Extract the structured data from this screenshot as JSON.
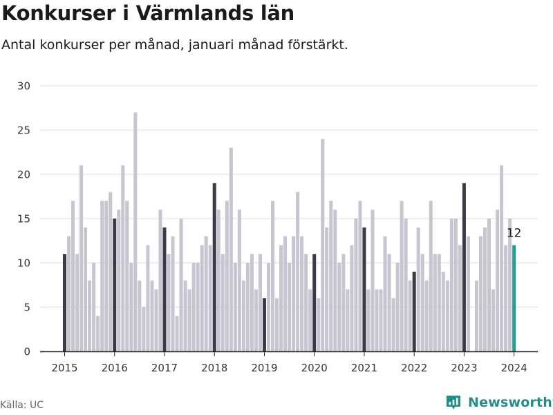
{
  "title": "Konkurser i Värmlands län",
  "subtitle": "Antal konkurser per månad, januari månad förstärkt.",
  "source": "Källa: UC",
  "brand": {
    "name": "Newsworthy",
    "logo_icon": "newsworthy-logo-icon"
  },
  "colors": {
    "regular": "#c6c5d0",
    "january": "#3b3a48",
    "latest": "#16a39a",
    "grid": "#dddddd",
    "brand": "#1f8f8a"
  },
  "chart_data": {
    "type": "bar",
    "title": "Konkurser i Värmlands län",
    "subtitle": "Antal konkurser per månad, januari månad förstärkt.",
    "ylim": [
      0,
      30
    ],
    "yticks": [
      0,
      5,
      10,
      15,
      20,
      25,
      30
    ],
    "xticks": [
      "2015",
      "2016",
      "2017",
      "2018",
      "2019",
      "2020",
      "2021",
      "2022",
      "2023",
      "2024"
    ],
    "grid": true,
    "series": [
      {
        "year": "2015",
        "values": [
          11,
          13,
          17,
          11,
          21,
          14,
          8,
          10,
          4,
          17,
          17,
          18
        ]
      },
      {
        "year": "2016",
        "values": [
          15,
          16,
          21,
          17,
          10,
          27,
          8,
          5,
          12,
          8,
          7,
          16
        ]
      },
      {
        "year": "2017",
        "values": [
          14,
          11,
          13,
          4,
          15,
          8,
          7,
          10,
          10,
          12,
          13,
          12
        ]
      },
      {
        "year": "2018",
        "values": [
          19,
          16,
          11,
          17,
          23,
          10,
          16,
          8,
          10,
          11,
          7,
          11
        ]
      },
      {
        "year": "2019",
        "values": [
          6,
          10,
          17,
          6,
          12,
          13,
          10,
          13,
          18,
          13,
          11,
          7
        ]
      },
      {
        "year": "2020",
        "values": [
          11,
          6,
          24,
          14,
          17,
          16,
          10,
          11,
          7,
          12,
          15,
          17
        ]
      },
      {
        "year": "2021",
        "values": [
          14,
          7,
          16,
          7,
          7,
          13,
          11,
          6,
          10,
          17,
          15,
          8
        ]
      },
      {
        "year": "2022",
        "values": [
          9,
          14,
          11,
          8,
          17,
          11,
          11,
          9,
          8,
          15,
          15,
          12
        ]
      },
      {
        "year": "2023",
        "values": [
          19,
          13,
          0,
          8,
          13,
          14,
          15,
          7,
          16,
          21,
          12,
          15
        ]
      },
      {
        "year": "2024",
        "values": [
          12
        ]
      }
    ],
    "highlight": "January bars are emphasized; latest bar highlighted",
    "annotations": [
      {
        "label": "12",
        "target": "latest"
      }
    ]
  }
}
